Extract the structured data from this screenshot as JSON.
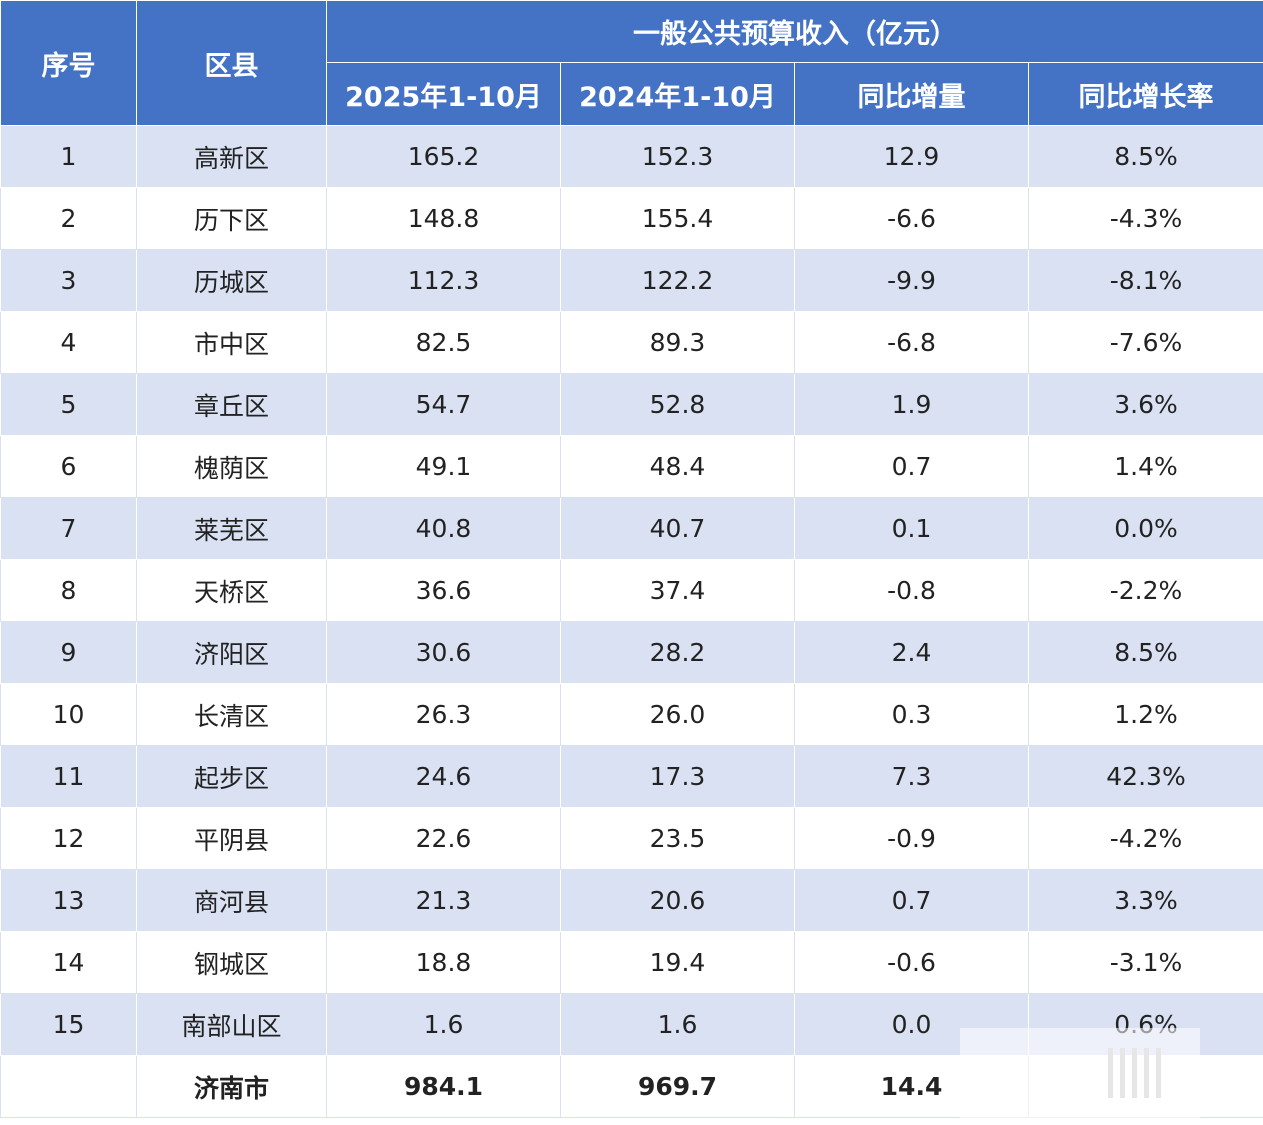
{
  "header": {
    "index_label": "序号",
    "district_label": "区县",
    "group_label": "一般公共预算收入（亿元）",
    "col_2025": "2025年1-10月",
    "col_2024": "2024年1-10月",
    "col_diff": "同比增量",
    "col_rate": "同比增长率"
  },
  "rows": [
    {
      "idx": "1",
      "name": "高新区",
      "v2025": "165.2",
      "v2024": "152.3",
      "diff": "12.9",
      "rate": "8.5%"
    },
    {
      "idx": "2",
      "name": "历下区",
      "v2025": "148.8",
      "v2024": "155.4",
      "diff": "-6.6",
      "rate": "-4.3%"
    },
    {
      "idx": "3",
      "name": "历城区",
      "v2025": "112.3",
      "v2024": "122.2",
      "diff": "-9.9",
      "rate": "-8.1%"
    },
    {
      "idx": "4",
      "name": "市中区",
      "v2025": "82.5",
      "v2024": "89.3",
      "diff": "-6.8",
      "rate": "-7.6%"
    },
    {
      "idx": "5",
      "name": "章丘区",
      "v2025": "54.7",
      "v2024": "52.8",
      "diff": "1.9",
      "rate": "3.6%"
    },
    {
      "idx": "6",
      "name": "槐荫区",
      "v2025": "49.1",
      "v2024": "48.4",
      "diff": "0.7",
      "rate": "1.4%"
    },
    {
      "idx": "7",
      "name": "莱芜区",
      "v2025": "40.8",
      "v2024": "40.7",
      "diff": "0.1",
      "rate": "0.0%"
    },
    {
      "idx": "8",
      "name": "天桥区",
      "v2025": "36.6",
      "v2024": "37.4",
      "diff": "-0.8",
      "rate": "-2.2%"
    },
    {
      "idx": "9",
      "name": "济阳区",
      "v2025": "30.6",
      "v2024": "28.2",
      "diff": "2.4",
      "rate": "8.5%"
    },
    {
      "idx": "10",
      "name": "长清区",
      "v2025": "26.3",
      "v2024": "26.0",
      "diff": "0.3",
      "rate": "1.2%"
    },
    {
      "idx": "11",
      "name": "起步区",
      "v2025": "24.6",
      "v2024": "17.3",
      "diff": "7.3",
      "rate": "42.3%"
    },
    {
      "idx": "12",
      "name": "平阴县",
      "v2025": "22.6",
      "v2024": "23.5",
      "diff": "-0.9",
      "rate": "-4.2%"
    },
    {
      "idx": "13",
      "name": "商河县",
      "v2025": "21.3",
      "v2024": "20.6",
      "diff": "0.7",
      "rate": "3.3%"
    },
    {
      "idx": "14",
      "name": "钢城区",
      "v2025": "18.8",
      "v2024": "19.4",
      "diff": "-0.6",
      "rate": "-3.1%"
    },
    {
      "idx": "15",
      "name": "南部山区",
      "v2025": "1.6",
      "v2024": "1.6",
      "diff": "0.0",
      "rate": "0.6%"
    }
  ],
  "total": {
    "idx": "",
    "name": "济南市",
    "v2025": "984.1",
    "v2024": "969.7",
    "diff": "14.4",
    "rate": ""
  },
  "colors": {
    "header_bg": "#4472c4",
    "band_bg": "#d9e1f2",
    "header_text": "#ffffff"
  }
}
